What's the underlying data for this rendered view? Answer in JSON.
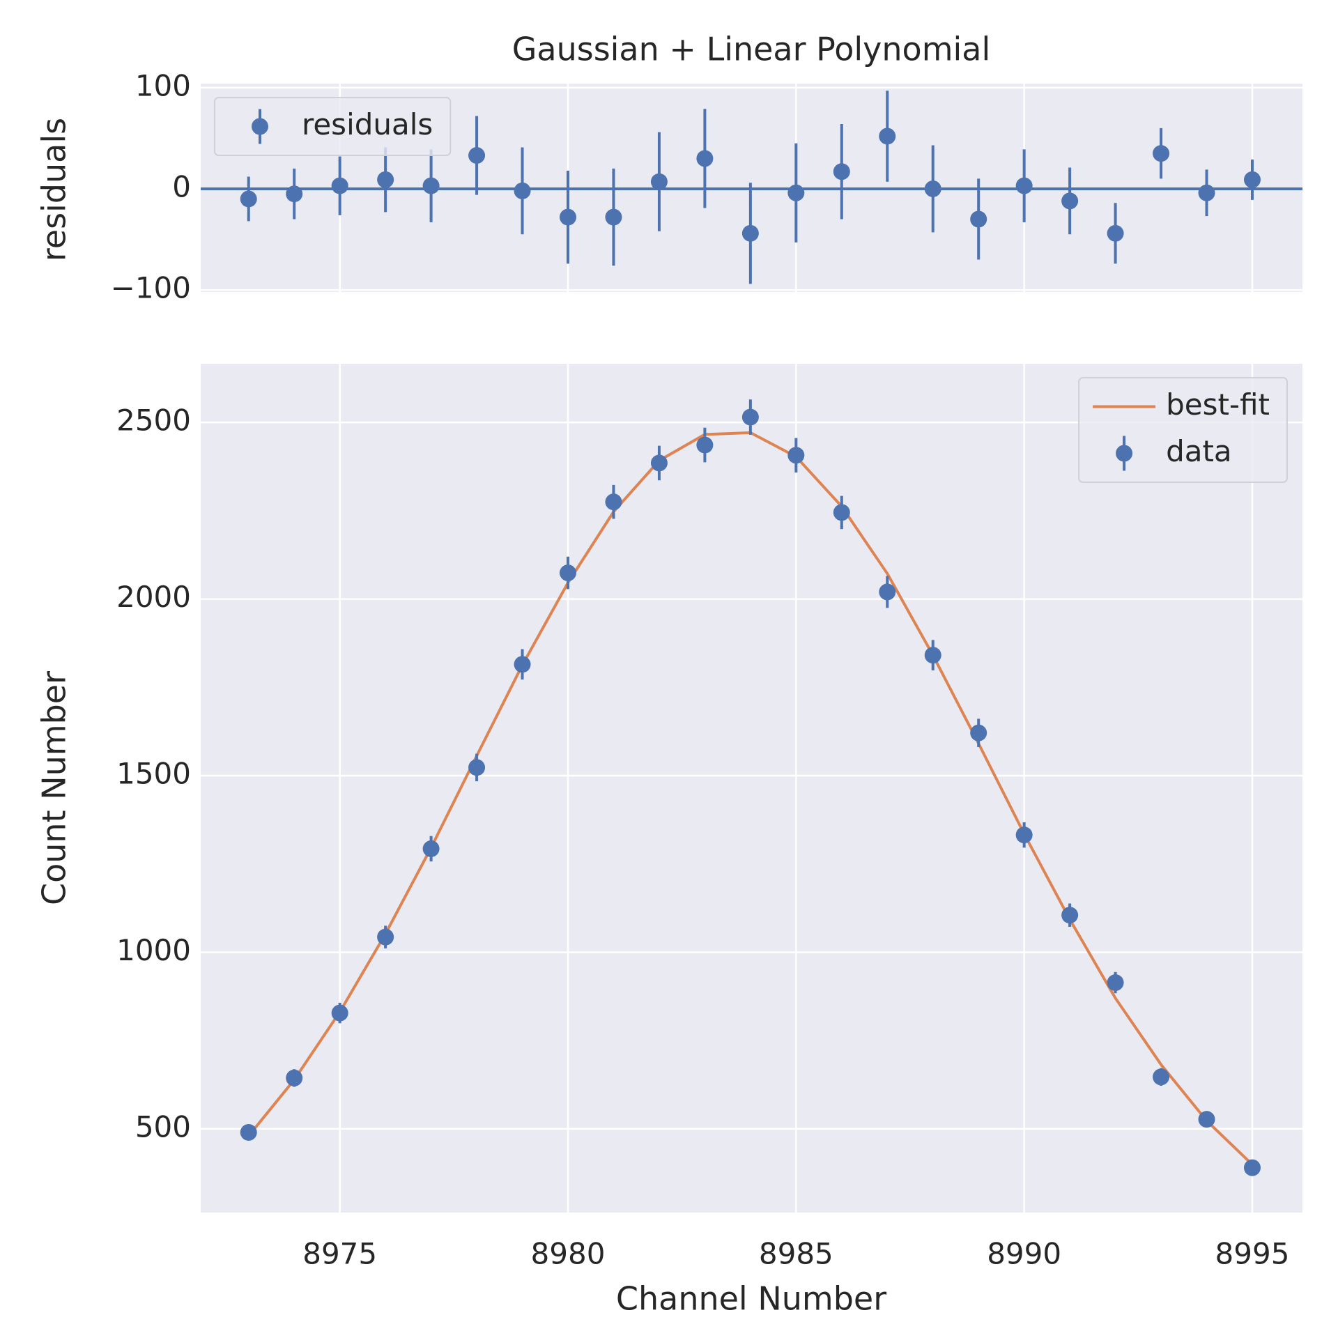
{
  "chart_data": [
    {
      "type": "errorbar",
      "title": "Gaussian + Linear Polynomial",
      "ylabel": "residuals",
      "x": [
        8973,
        8974,
        8975,
        8976,
        8977,
        8978,
        8979,
        8980,
        8981,
        8982,
        8983,
        8984,
        8985,
        8986,
        8987,
        8988,
        8989,
        8990,
        8991,
        8992,
        8993,
        8994,
        8995
      ],
      "series": [
        {
          "name": "residuals",
          "type": "errorbar",
          "color": "#4c72b0",
          "values": [
            -10,
            -5,
            3,
            9,
            3,
            33,
            -2,
            -28,
            -28,
            7,
            30,
            -44,
            -4,
            17,
            52,
            0,
            -30,
            3,
            -12,
            -44,
            35,
            -4,
            9
          ],
          "errors": [
            22,
            25,
            29,
            32,
            36,
            39,
            43,
            46,
            48,
            49,
            49,
            50,
            49,
            47,
            45,
            43,
            40,
            36,
            33,
            30,
            25,
            23,
            20
          ]
        }
      ],
      "hline": 0,
      "xlim": [
        8971.95,
        8996.1
      ],
      "xticks": [
        8975,
        8980,
        8985,
        8990,
        8995
      ],
      "show_xticklabels": false,
      "ylim": [
        -102,
        104
      ],
      "yticks": [
        {
          "value": -100,
          "label": "−100"
        },
        0,
        100
      ],
      "grid": true,
      "legend": "upper left"
    },
    {
      "type": "errorbar",
      "xlabel": "Channel Number",
      "ylabel": "Count Number",
      "x": [
        8973,
        8974,
        8975,
        8976,
        8977,
        8978,
        8979,
        8980,
        8981,
        8982,
        8983,
        8984,
        8985,
        8986,
        8987,
        8988,
        8989,
        8990,
        8991,
        8992,
        8993,
        8994,
        8995
      ],
      "series": [
        {
          "name": "best-fit",
          "type": "line",
          "color": "#dd8452",
          "values": [
            480,
            639,
            831,
            1052,
            1296,
            1556,
            1813,
            2046,
            2247,
            2392,
            2466,
            2471,
            2403,
            2262,
            2072,
            1841,
            1591,
            1335,
            1093,
            870,
            682,
            523,
            399
          ]
        },
        {
          "name": "data",
          "type": "errorbar",
          "color": "#4c72b0",
          "values": [
            490,
            644,
            828,
            1043,
            1293,
            1523,
            1815,
            2074,
            2275,
            2385,
            2436,
            2515,
            2407,
            2245,
            2020,
            1841,
            1621,
            1332,
            1105,
            914,
            647,
            527,
            390
          ],
          "errors": [
            22,
            25,
            29,
            32,
            36,
            39,
            43,
            46,
            48,
            49,
            49,
            50,
            49,
            47,
            45,
            43,
            40,
            36,
            33,
            30,
            25,
            23,
            20
          ]
        }
      ],
      "xlim": [
        8971.95,
        8996.1
      ],
      "xticks": [
        8975,
        8980,
        8985,
        8990,
        8995
      ],
      "show_xticklabels": true,
      "ylim": [
        263,
        2666
      ],
      "yticks": [
        500,
        1000,
        1500,
        2000,
        2500
      ],
      "grid": true,
      "legend": "upper right"
    }
  ]
}
